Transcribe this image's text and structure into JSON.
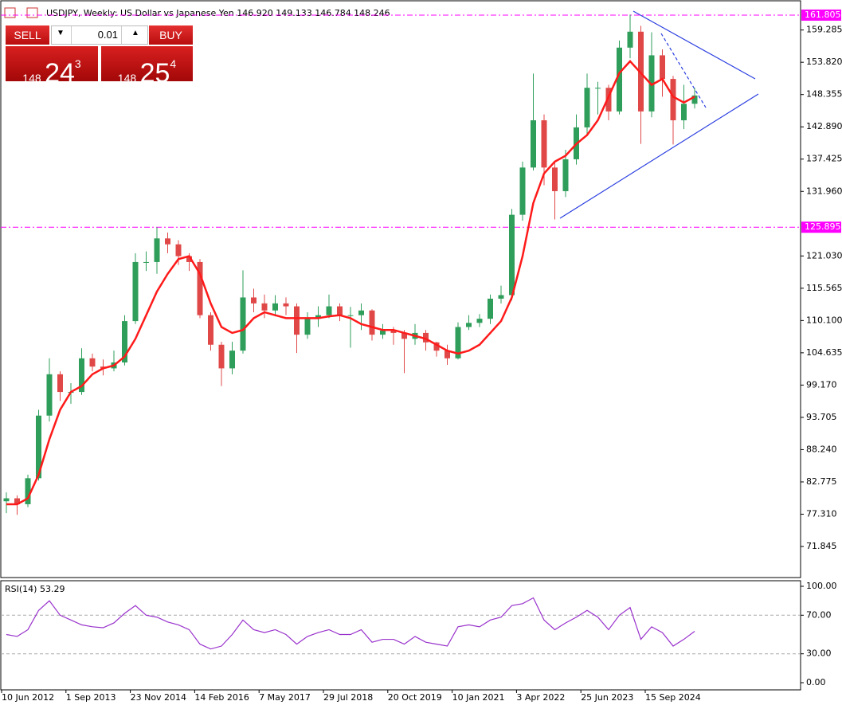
{
  "chart_data": [
    {
      "type": "candlestick",
      "title": "USDJPY, Weekly: US Dollar vs Japanese Yen 146.920 149.133 146.784 148.246",
      "up_color": "#2f9e5b",
      "down_color": "#e04848",
      "open": [
        79.5,
        80.0,
        79.0,
        83.4,
        94.0,
        101.0,
        98.0,
        98.0,
        103.7,
        102.3,
        102.0,
        103.0,
        110.0,
        120.0,
        120.0,
        124.0,
        123.0,
        121.0,
        120.0,
        111.0,
        106.0,
        102.0,
        105.0,
        114.0,
        113.0,
        111.8,
        113.0,
        112.5,
        107.7,
        110.4,
        111.0,
        112.5,
        111.0,
        111.0,
        111.8,
        107.7,
        108.4,
        108.0,
        107.0,
        108.0,
        106.4,
        105.0,
        103.7,
        109.0,
        109.7,
        110.4,
        113.8,
        114.4,
        128.0,
        136.0,
        144.0,
        136.0,
        132.0,
        137.4,
        142.8,
        149.5,
        149.5,
        145.5,
        156.3,
        159.0,
        145.5,
        155.0,
        151.0,
        144.0,
        146.8
      ],
      "high": [
        81.0,
        80.5,
        84.0,
        95.0,
        103.7,
        101.5,
        99.5,
        105.4,
        104.5,
        103.5,
        105.0,
        111.0,
        121.5,
        121.8,
        125.9,
        125.0,
        123.7,
        121.5,
        120.5,
        111.5,
        106.5,
        106.5,
        118.6,
        115.5,
        114.5,
        114.4,
        114.0,
        113.0,
        111.5,
        112.5,
        114.5,
        113.0,
        112.4,
        113.0,
        112.0,
        109.5,
        109.0,
        108.5,
        109.5,
        108.5,
        106.5,
        106.0,
        109.8,
        111.0,
        111.2,
        114.5,
        116.0,
        129.0,
        137.0,
        151.9,
        145.0,
        137.0,
        139.0,
        145.0,
        151.9,
        150.5,
        150.0,
        157.5,
        161.9,
        160.0,
        158.9,
        156.0,
        151.5,
        150.0,
        149.5
      ],
      "low": [
        77.5,
        77.2,
        78.5,
        83.0,
        93.0,
        96.5,
        96.0,
        97.5,
        101.5,
        100.8,
        101.5,
        102.5,
        109.5,
        118.5,
        118.0,
        121.5,
        119.5,
        118.5,
        110.5,
        105.0,
        99.0,
        101.0,
        104.5,
        111.5,
        110.5,
        110.8,
        111.0,
        104.6,
        107.0,
        109.0,
        110.5,
        110.0,
        105.5,
        108.5,
        106.7,
        107.0,
        106.0,
        101.2,
        106.0,
        105.0,
        104.0,
        102.6,
        103.5,
        108.5,
        109.0,
        109.5,
        113.0,
        113.5,
        127.0,
        135.5,
        133.0,
        127.2,
        131.0,
        136.5,
        141.5,
        145.0,
        144.0,
        145.0,
        154.5,
        140.0,
        144.5,
        148.0,
        139.9,
        142.5,
        146.0
      ],
      "close": [
        80.0,
        79.0,
        83.4,
        94.0,
        101.0,
        98.0,
        98.0,
        103.7,
        102.3,
        102.0,
        103.0,
        110.0,
        120.0,
        120.0,
        124.0,
        123.0,
        121.0,
        120.0,
        111.0,
        106.0,
        102.0,
        105.0,
        114.0,
        113.0,
        111.8,
        113.0,
        112.5,
        107.7,
        110.4,
        111.0,
        112.5,
        111.0,
        111.0,
        111.8,
        107.7,
        108.4,
        108.0,
        107.0,
        108.0,
        106.4,
        105.0,
        103.7,
        109.0,
        109.7,
        110.4,
        113.8,
        114.4,
        128.0,
        136.0,
        144.0,
        136.0,
        132.0,
        137.4,
        142.8,
        149.5,
        149.5,
        145.5,
        156.3,
        159.0,
        145.5,
        155.0,
        151.0,
        144.0,
        146.8,
        148.2
      ],
      "ma": {
        "color": "#ff1a1a",
        "values": [
          79,
          79,
          80,
          84,
          90,
          95,
          98,
          99,
          101,
          102,
          102.5,
          104,
          107,
          111,
          115,
          118,
          120.5,
          121,
          118,
          113,
          109,
          108,
          108.5,
          110.5,
          111.5,
          111,
          110.5,
          110.5,
          110.5,
          110.5,
          110.8,
          111,
          110.5,
          109.5,
          109,
          108.5,
          108.5,
          108,
          107.5,
          107,
          106,
          105,
          104.5,
          105,
          106,
          108,
          110,
          114,
          121,
          130,
          135,
          137,
          138,
          140,
          141.5,
          144,
          148,
          152,
          154,
          152,
          150,
          151,
          148,
          147,
          148
        ]
      },
      "ylim": [
        66.72,
        163.69
      ],
      "yticks": [
        159.285,
        {
          "value": 153.82,
          "label": "153.820"
        },
        148.355,
        {
          "value": 142.89,
          "label": "142.890"
        },
        137.425,
        {
          "value": 131.96,
          "label": "131.960"
        },
        {
          "value": 121.03,
          "label": "121.030"
        },
        115.565,
        {
          "value": 110.1,
          "label": "110.100"
        },
        104.635,
        {
          "value": 99.17,
          "label": "99.170"
        },
        93.705,
        {
          "value": 88.24,
          "label": "88.240"
        },
        82.775,
        {
          "value": 77.31,
          "label": "77.310"
        },
        71.845
      ],
      "levels": [
        161.805,
        125.895
      ],
      "level_color": "#ff00ff",
      "date_labels": [
        "10 Jun 2012",
        "1 Sep 2013",
        "23 Nov 2014",
        "14 Feb 2016",
        "7 May 2017",
        "29 Jul 2018",
        "20 Oct 2019",
        "10 Jan 2021",
        "3 Apr 2022",
        "25 Jun 2023",
        "15 Sep 2024"
      ]
    },
    {
      "type": "line",
      "title": "RSI(14) 53.29",
      "color": "#9932cc",
      "values": [
        50,
        48,
        55,
        75,
        85,
        70,
        65,
        60,
        58,
        57,
        62,
        72,
        80,
        70,
        68,
        63,
        60,
        55,
        40,
        35,
        38,
        50,
        65,
        55,
        52,
        55,
        50,
        40,
        48,
        52,
        55,
        50,
        50,
        55,
        42,
        45,
        45,
        40,
        48,
        42,
        40,
        38,
        58,
        60,
        58,
        65,
        68,
        80,
        82,
        88,
        65,
        55,
        62,
        68,
        75,
        68,
        55,
        70,
        78,
        45,
        58,
        52,
        38,
        45,
        53.29
      ],
      "ylim": [
        -7.44,
        105.79
      ],
      "yticks": [
        {
          "value": 100,
          "label": "100.00"
        },
        {
          "value": 70,
          "label": "70.00"
        },
        {
          "value": 30,
          "label": "30.00"
        },
        {
          "value": 0,
          "label": "0.00"
        }
      ],
      "levels": [
        70,
        30
      ]
    }
  ],
  "trade_panel": {
    "sell": "SELL",
    "buy": "BUY",
    "lot": "0.01",
    "bid": {
      "big": "148",
      "main": "24",
      "small": "3"
    },
    "ask": {
      "big": "148",
      "main": "25",
      "small": "4"
    }
  }
}
